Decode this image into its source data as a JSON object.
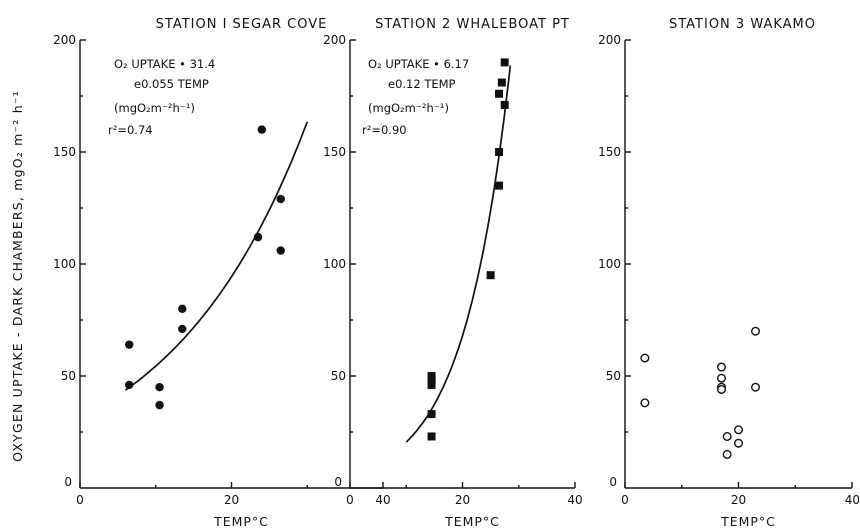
{
  "y_axis_label": "OXYGEN UPTAKE - DARK CHAMBERS, mgO₂ m⁻² h⁻¹",
  "chart_data": [
    {
      "type": "scatter",
      "title": "STATION I SEGAR COVE",
      "xlabel": "TEMP°C",
      "xlim": [
        0,
        40
      ],
      "ylim": [
        0,
        200
      ],
      "xticks": [
        "0",
        "20",
        "40"
      ],
      "yticks": [
        "50",
        "100",
        "150",
        "200"
      ],
      "marker": "filled-circle",
      "points": [
        {
          "x": 6.5,
          "y": 64
        },
        {
          "x": 6.5,
          "y": 46
        },
        {
          "x": 10.5,
          "y": 45
        },
        {
          "x": 10.5,
          "y": 37
        },
        {
          "x": 13.5,
          "y": 80
        },
        {
          "x": 13.5,
          "y": 71
        },
        {
          "x": 23.5,
          "y": 112
        },
        {
          "x": 24,
          "y": 160
        },
        {
          "x": 26.5,
          "y": 129
        },
        {
          "x": 26.5,
          "y": 106
        }
      ],
      "fit": {
        "a": 31.4,
        "b": 0.055,
        "x_range": [
          6,
          30
        ]
      },
      "annotation": [
        "O₂ UPTAKE • 31.4",
        "e0.055 TEMP",
        "(mgO₂m⁻²h⁻¹)",
        "r²=0.74"
      ]
    },
    {
      "type": "scatter",
      "title": "STATION 2 WHALEBOAT PT",
      "xlabel": "TEMP°C",
      "xlim": [
        0,
        40
      ],
      "ylim": [
        0,
        200
      ],
      "xticks": [
        "0",
        "20",
        "40"
      ],
      "yticks": [
        "50",
        "100",
        "150",
        "200"
      ],
      "marker": "filled-square",
      "points": [
        {
          "x": 14.5,
          "y": 50
        },
        {
          "x": 14.5,
          "y": 48
        },
        {
          "x": 14.5,
          "y": 46
        },
        {
          "x": 14.5,
          "y": 33
        },
        {
          "x": 14.5,
          "y": 23
        },
        {
          "x": 25,
          "y": 95
        },
        {
          "x": 26.5,
          "y": 150
        },
        {
          "x": 26.5,
          "y": 135
        },
        {
          "x": 26.5,
          "y": 176
        },
        {
          "x": 27,
          "y": 181
        },
        {
          "x": 27.5,
          "y": 190
        },
        {
          "x": 27.5,
          "y": 171
        }
      ],
      "fit": {
        "a": 6.17,
        "b": 0.12,
        "x_range": [
          10,
          28.5
        ]
      },
      "annotation": [
        "O₂ UPTAKE • 6.17",
        "e0.12 TEMP",
        "(mgO₂m⁻²h⁻¹)",
        "r²=0.90"
      ]
    },
    {
      "type": "scatter",
      "title": "STATION 3 WAKAMO",
      "xlabel": "TEMP°C",
      "xlim": [
        0,
        40
      ],
      "ylim": [
        0,
        200
      ],
      "xticks": [
        "0",
        "20",
        "40"
      ],
      "yticks": [
        "50",
        "100",
        "150",
        "200"
      ],
      "marker": "open-circle",
      "points": [
        {
          "x": 3.5,
          "y": 58
        },
        {
          "x": 3.5,
          "y": 38
        },
        {
          "x": 17,
          "y": 54
        },
        {
          "x": 17,
          "y": 49
        },
        {
          "x": 17,
          "y": 45
        },
        {
          "x": 17,
          "y": 44
        },
        {
          "x": 18,
          "y": 23
        },
        {
          "x": 18,
          "y": 15
        },
        {
          "x": 20,
          "y": 26
        },
        {
          "x": 20,
          "y": 20
        },
        {
          "x": 23,
          "y": 70
        },
        {
          "x": 23,
          "y": 45
        }
      ]
    }
  ]
}
